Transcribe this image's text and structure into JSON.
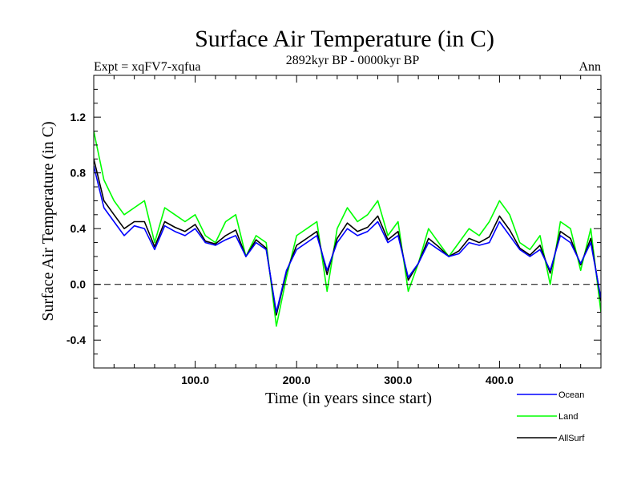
{
  "header": {
    "title": "Surface Air Temperature (in C)",
    "expt": "Expt = xqFV7-xqfua",
    "period": "2892kyr BP - 0000kyr BP",
    "season": "Ann"
  },
  "chart_data": {
    "type": "line",
    "title": "Surface Air Temperature (in C)",
    "xlabel": "Time (in years since start)",
    "ylabel": "Surface Air Temperature (in C)",
    "xlim": [
      0,
      500
    ],
    "ylim": [
      -0.6,
      1.5
    ],
    "xticks": [
      100,
      200,
      300,
      400
    ],
    "xtick_labels": [
      "100.0",
      "200.0",
      "300.0",
      "400.0"
    ],
    "yticks": [
      -0.4,
      0.0,
      0.4,
      0.8,
      1.2
    ],
    "ytick_labels": [
      "-0.4",
      "0.0",
      "0.4",
      "0.8",
      "1.2"
    ],
    "reference_line": 0.0,
    "legend_position": "bottom-right",
    "series": [
      {
        "name": "Ocean",
        "color": "#0000ff",
        "x": [
          0,
          10,
          20,
          30,
          40,
          50,
          60,
          70,
          80,
          90,
          100,
          110,
          120,
          130,
          140,
          150,
          160,
          170,
          180,
          190,
          200,
          210,
          220,
          230,
          240,
          250,
          260,
          270,
          280,
          290,
          300,
          310,
          320,
          330,
          340,
          350,
          360,
          370,
          380,
          390,
          400,
          410,
          420,
          430,
          440,
          450,
          460,
          470,
          480,
          490,
          500
        ],
        "values": [
          0.85,
          0.55,
          0.45,
          0.35,
          0.42,
          0.4,
          0.25,
          0.42,
          0.38,
          0.35,
          0.4,
          0.3,
          0.28,
          0.32,
          0.35,
          0.2,
          0.3,
          0.25,
          -0.2,
          0.1,
          0.25,
          0.3,
          0.35,
          0.1,
          0.3,
          0.4,
          0.35,
          0.38,
          0.45,
          0.3,
          0.35,
          0.05,
          0.15,
          0.3,
          0.25,
          0.2,
          0.22,
          0.3,
          0.28,
          0.3,
          0.45,
          0.35,
          0.25,
          0.2,
          0.25,
          0.1,
          0.35,
          0.3,
          0.15,
          0.3,
          -0.1
        ]
      },
      {
        "name": "Land",
        "color": "#00ff00",
        "x": [
          0,
          10,
          20,
          30,
          40,
          50,
          60,
          70,
          80,
          90,
          100,
          110,
          120,
          130,
          140,
          150,
          160,
          170,
          180,
          190,
          200,
          210,
          220,
          230,
          240,
          250,
          260,
          270,
          280,
          290,
          300,
          310,
          320,
          330,
          340,
          350,
          360,
          370,
          380,
          390,
          400,
          410,
          420,
          430,
          440,
          450,
          460,
          470,
          480,
          490,
          500
        ],
        "values": [
          1.1,
          0.75,
          0.6,
          0.5,
          0.55,
          0.6,
          0.3,
          0.55,
          0.5,
          0.45,
          0.5,
          0.35,
          0.3,
          0.45,
          0.5,
          0.2,
          0.35,
          0.3,
          -0.3,
          0.05,
          0.35,
          0.4,
          0.45,
          -0.05,
          0.4,
          0.55,
          0.45,
          0.5,
          0.6,
          0.35,
          0.45,
          -0.05,
          0.15,
          0.4,
          0.3,
          0.2,
          0.3,
          0.4,
          0.35,
          0.45,
          0.6,
          0.5,
          0.3,
          0.25,
          0.35,
          0.0,
          0.45,
          0.4,
          0.1,
          0.4,
          -0.2
        ]
      },
      {
        "name": "AllSurf",
        "color": "#000000",
        "x": [
          0,
          10,
          20,
          30,
          40,
          50,
          60,
          70,
          80,
          90,
          100,
          110,
          120,
          130,
          140,
          150,
          160,
          170,
          180,
          190,
          200,
          210,
          220,
          230,
          240,
          250,
          260,
          270,
          280,
          290,
          300,
          310,
          320,
          330,
          340,
          350,
          360,
          370,
          380,
          390,
          400,
          410,
          420,
          430,
          440,
          450,
          460,
          470,
          480,
          490,
          500
        ],
        "values": [
          0.9,
          0.6,
          0.5,
          0.4,
          0.45,
          0.45,
          0.27,
          0.45,
          0.41,
          0.38,
          0.43,
          0.31,
          0.29,
          0.35,
          0.39,
          0.2,
          0.32,
          0.26,
          -0.22,
          0.09,
          0.28,
          0.33,
          0.38,
          0.07,
          0.33,
          0.44,
          0.38,
          0.41,
          0.49,
          0.32,
          0.38,
          0.03,
          0.15,
          0.33,
          0.27,
          0.2,
          0.24,
          0.33,
          0.3,
          0.34,
          0.49,
          0.39,
          0.26,
          0.21,
          0.28,
          0.08,
          0.38,
          0.33,
          0.14,
          0.33,
          -0.12
        ]
      }
    ]
  }
}
